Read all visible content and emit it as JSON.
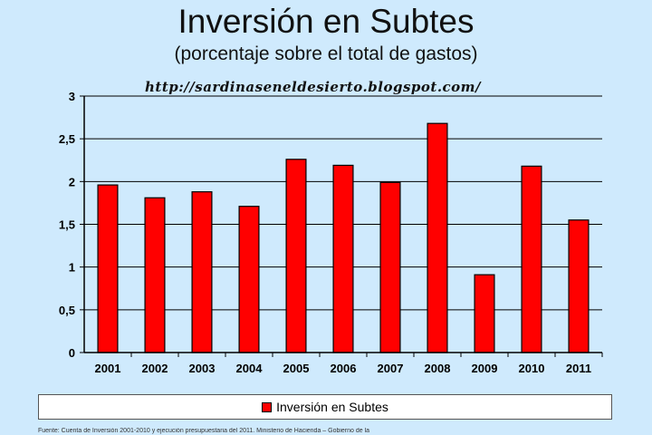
{
  "chart_data": {
    "type": "bar",
    "title": "Inversión en Subtes",
    "subtitle": "(porcentaje sobre el total de gastos)",
    "annotation": "http://sardinaseneldesierto.blogspot.com/",
    "categories": [
      "2001",
      "2002",
      "2003",
      "2004",
      "2005",
      "2006",
      "2007",
      "2008",
      "2009",
      "2010",
      "2011"
    ],
    "series": [
      {
        "name": "Inversión en Subtes",
        "values": [
          1.96,
          1.81,
          1.88,
          1.71,
          2.26,
          2.19,
          1.99,
          2.68,
          0.91,
          2.18,
          1.55
        ],
        "color": "#ff0000"
      }
    ],
    "y_ticks": [
      "0",
      "0,5",
      "1",
      "1,5",
      "2",
      "2,5",
      "3"
    ],
    "ylim": [
      0,
      3
    ],
    "xlabel": "",
    "ylabel": "",
    "grid": true,
    "legend": "bottom",
    "plot_background": "#cfeafd",
    "gridline_color": "#000000"
  },
  "legend": {
    "label": "Inversión en Subtes"
  },
  "footnote": "Fuente: Cuenta de Inversión 2001-2010 y ejecución presupuestaria del 2011. Ministerio de Hacienda – Gobierno de la"
}
